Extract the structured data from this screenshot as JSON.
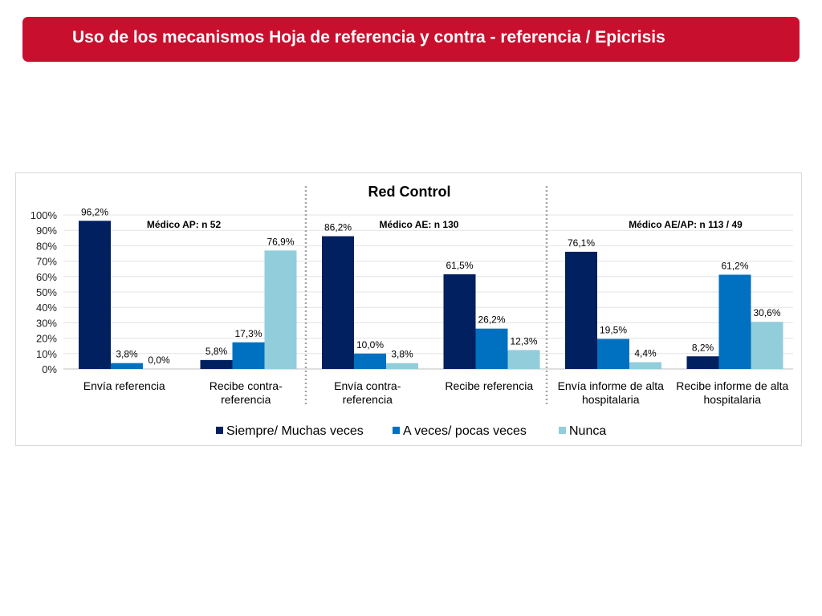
{
  "header": {
    "title": "Uso de los mecanismos Hoja de referencia y contra - referencia / Epicrisis",
    "banner_color": "#c8102e"
  },
  "chart_data": {
    "type": "bar",
    "title": "Red Control",
    "xlabel": "",
    "ylabel": "",
    "ylim": [
      0,
      100
    ],
    "yticks": [
      "0%",
      "10%",
      "20%",
      "30%",
      "40%",
      "50%",
      "60%",
      "70%",
      "80%",
      "90%",
      "100%"
    ],
    "grid": true,
    "legend_position": "bottom",
    "groups": [
      {
        "label": "Médico AP: n 52",
        "categories": [
          0,
          1
        ]
      },
      {
        "label": "Médico AE: n 130",
        "categories": [
          2,
          3
        ]
      },
      {
        "label": "Médico AE/AP: n 113 / 49",
        "categories": [
          4,
          5
        ]
      }
    ],
    "categories": [
      [
        "Envía referencia"
      ],
      [
        "Recibe contra-",
        "referencia"
      ],
      [
        "Envía contra-",
        "referencia"
      ],
      [
        "Recibe referencia"
      ],
      [
        "Envía informe de alta",
        "hospitalaria"
      ],
      [
        "Recibe informe de alta",
        "hospitalaria"
      ]
    ],
    "series": [
      {
        "name": "Siempre/ Muchas veces",
        "color": "#002060",
        "values": [
          96.2,
          5.8,
          86.2,
          61.5,
          76.1,
          8.2
        ],
        "labels": [
          "96,2%",
          "5,8%",
          "86,2%",
          "61,5%",
          "76,1%",
          "8,2%"
        ]
      },
      {
        "name": "A veces/ pocas veces",
        "color": "#0070c0",
        "values": [
          3.8,
          17.3,
          10.0,
          26.2,
          19.5,
          61.2
        ],
        "labels": [
          "3,8%",
          "17,3%",
          "10,0%",
          "26,2%",
          "19,5%",
          "61,2%"
        ]
      },
      {
        "name": "Nunca",
        "color": "#92cddc",
        "values": [
          0.0,
          76.9,
          3.8,
          12.3,
          4.4,
          30.6
        ],
        "labels": [
          "0,0%",
          "76,9%",
          "3,8%",
          "12,3%",
          "4,4%",
          "30,6%"
        ]
      }
    ]
  }
}
